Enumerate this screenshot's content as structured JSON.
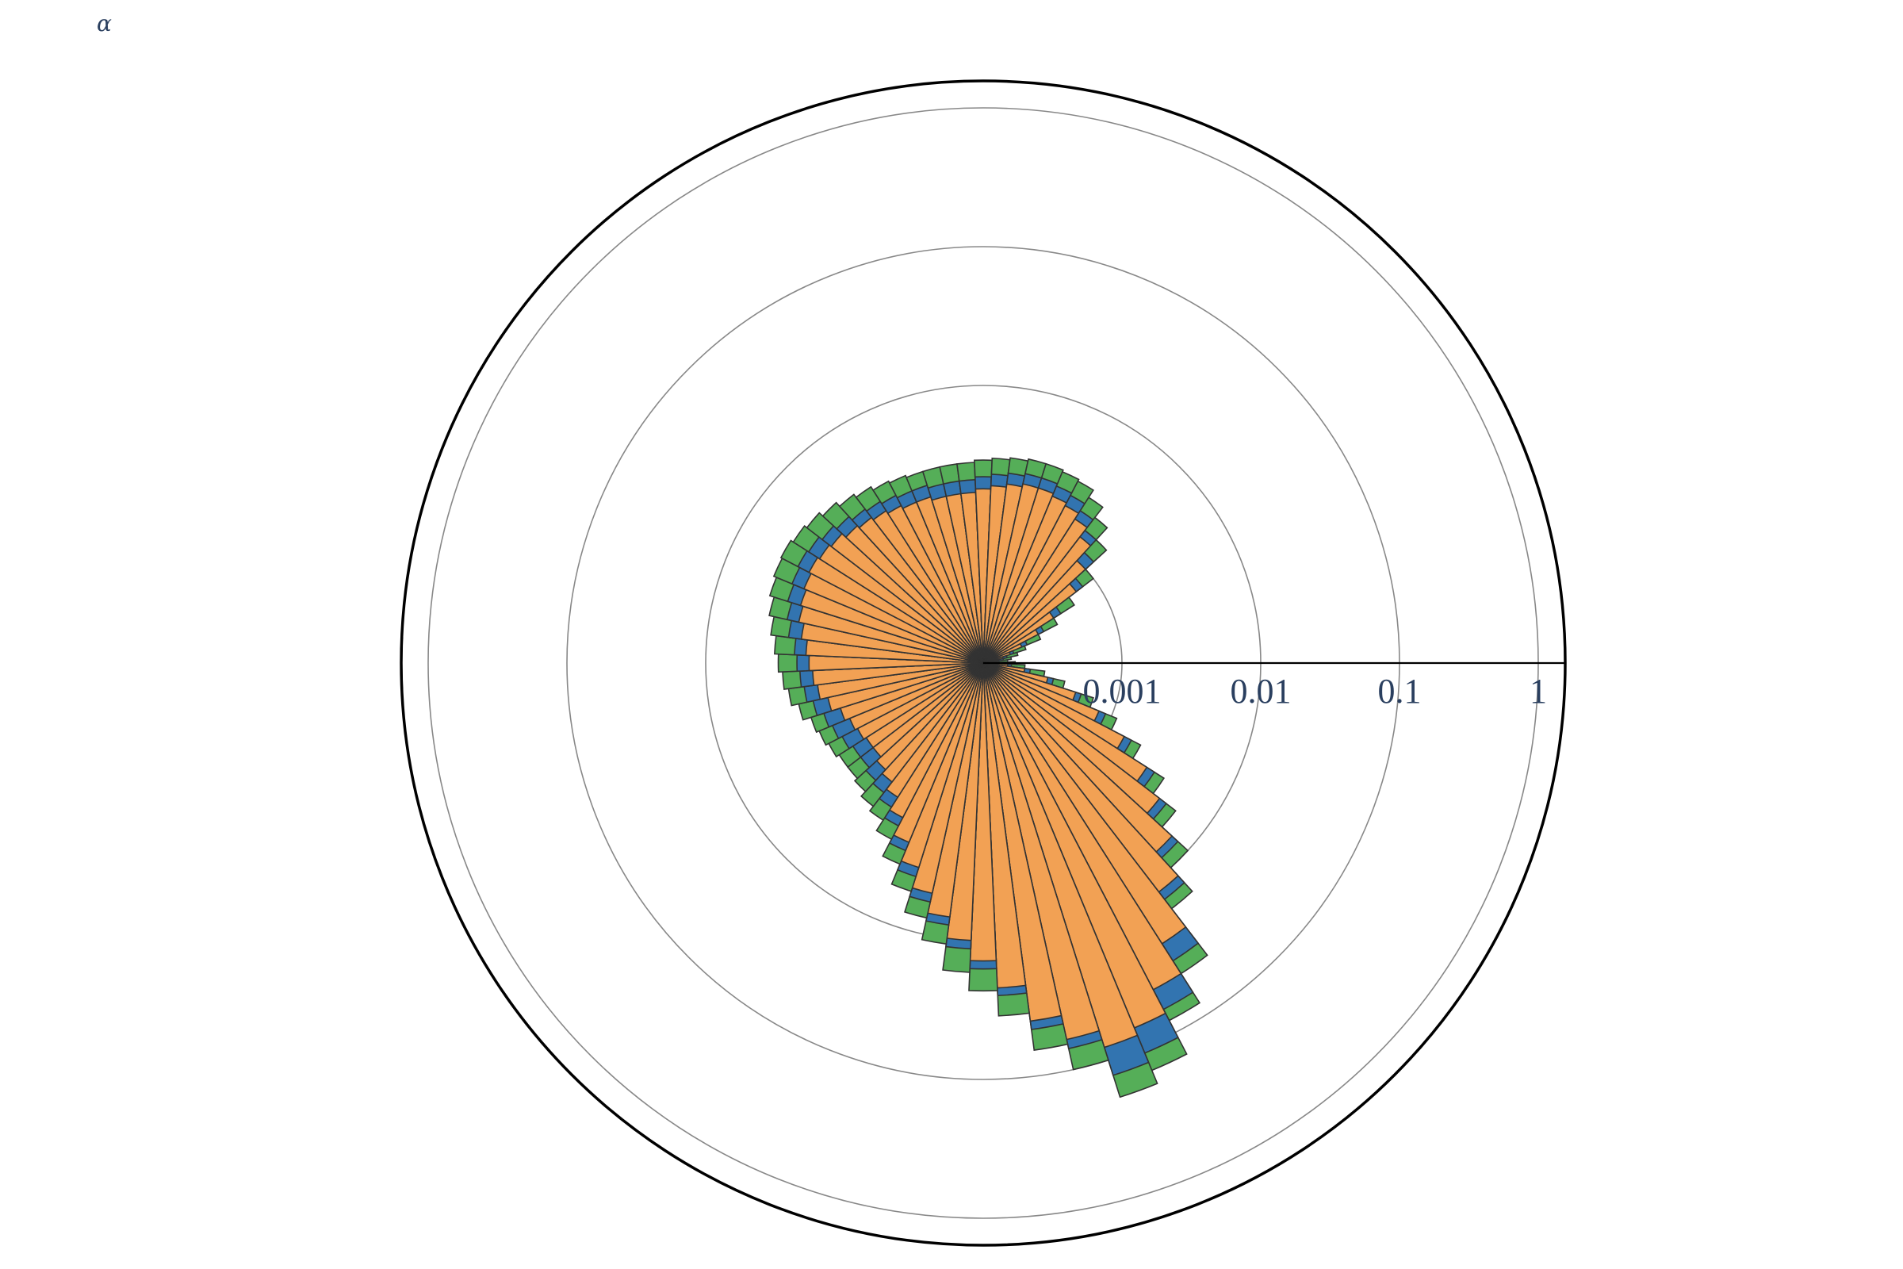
{
  "chart_data": {
    "type": "polar-bar",
    "title": "α",
    "radial_axis": {
      "type": "log",
      "tick_labels": [
        "0.001",
        "0.01",
        "0.1",
        "1"
      ],
      "tick_values": [
        0.001,
        0.01,
        0.1,
        1
      ],
      "range": [
        -4,
        0.16
      ]
    },
    "angular_axis": {
      "direction": "clockwise",
      "rotation_deg": 0,
      "bin_width_deg": 5,
      "grid": false
    },
    "barmode": "stack",
    "colors": {
      "orange": "#f2a154",
      "blue": "#3274b0",
      "green": "#55ae58",
      "outline": "#333333",
      "grid": "#888888",
      "text": "#2a3f5f"
    },
    "angles_deg": [
      0,
      5,
      10,
      15,
      20,
      25,
      30,
      35,
      40,
      45,
      50,
      55,
      60,
      65,
      70,
      75,
      80,
      85,
      90,
      95,
      100,
      105,
      110,
      115,
      120,
      125,
      130,
      135,
      140,
      145,
      150,
      155,
      160,
      165,
      170,
      175,
      180,
      185,
      190,
      195,
      200,
      205,
      210,
      215,
      220,
      225,
      230,
      235,
      240,
      245,
      250,
      255,
      260,
      265,
      270,
      275,
      280,
      285,
      290,
      295,
      300,
      305,
      310,
      315,
      320,
      325,
      330,
      335,
      340,
      345,
      350,
      355
    ],
    "series": [
      {
        "color": "orange",
        "cumulative_top": [
          0.00013,
          0.00015,
          0.0002,
          0.0003,
          0.0005,
          0.0008,
          0.0014,
          0.0025,
          0.004,
          0.007,
          0.012,
          0.025,
          0.045,
          0.07,
          0.08,
          0.06,
          0.04,
          0.022,
          0.014,
          0.01,
          0.007,
          0.005,
          0.0035,
          0.0025,
          0.0018,
          0.0014,
          0.0012,
          0.0011,
          0.001,
          0.001,
          0.00105,
          0.0011,
          0.0012,
          0.0014,
          0.0016,
          0.0017,
          0.0018,
          0.0019,
          0.0021,
          0.0023,
          0.0024,
          0.0025,
          0.0026,
          0.0025,
          0.0024,
          0.0022,
          0.0021,
          0.002,
          0.0019,
          0.0018,
          0.0018,
          0.0017,
          0.0017,
          0.0017,
          0.0018,
          0.0019,
          0.002,
          0.0021,
          0.0021,
          0.002,
          0.0019,
          0.0017,
          0.0014,
          0.001,
          0.0007,
          0.0004,
          0.00028,
          0.0002,
          0.00016,
          0.00014,
          0.00013,
          0.00012
        ]
      },
      {
        "color": "blue",
        "cumulative_top": [
          0.00014,
          0.00016,
          0.00022,
          0.00033,
          0.00055,
          0.0009,
          0.0016,
          0.0029,
          0.0046,
          0.008,
          0.014,
          0.035,
          0.065,
          0.11,
          0.13,
          0.07,
          0.046,
          0.025,
          0.016,
          0.0115,
          0.008,
          0.0058,
          0.0041,
          0.0029,
          0.0021,
          0.0017,
          0.0015,
          0.0014,
          0.0013,
          0.0013,
          0.0014,
          0.0015,
          0.0016,
          0.0018,
          0.002,
          0.0021,
          0.0022,
          0.0023,
          0.0026,
          0.0028,
          0.003,
          0.0031,
          0.0032,
          0.0031,
          0.0029,
          0.0027,
          0.0025,
          0.0024,
          0.0023,
          0.0022,
          0.0022,
          0.0021,
          0.0021,
          0.0021,
          0.0022,
          0.0023,
          0.0024,
          0.0025,
          0.0025,
          0.0024,
          0.0023,
          0.002,
          0.0016,
          0.0012,
          0.0008,
          0.00046,
          0.00031,
          0.00022,
          0.00017,
          0.00015,
          0.00014,
          0.00013
        ]
      },
      {
        "color": "green",
        "cumulative_top": [
          0.00017,
          0.0002,
          0.00028,
          0.0004,
          0.00068,
          0.0011,
          0.0019,
          0.0035,
          0.0056,
          0.01,
          0.017,
          0.045,
          0.08,
          0.15,
          0.19,
          0.1,
          0.065,
          0.035,
          0.023,
          0.017,
          0.011,
          0.0076,
          0.0053,
          0.0037,
          0.0027,
          0.0022,
          0.002,
          0.0018,
          0.0017,
          0.0017,
          0.0018,
          0.0019,
          0.002,
          0.0023,
          0.0026,
          0.0028,
          0.003,
          0.0032,
          0.0035,
          0.0038,
          0.0041,
          0.0043,
          0.0044,
          0.0042,
          0.004,
          0.0037,
          0.0034,
          0.0032,
          0.003,
          0.0029,
          0.0028,
          0.0028,
          0.0028,
          0.0028,
          0.0029,
          0.003,
          0.0031,
          0.0032,
          0.0032,
          0.0031,
          0.003,
          0.0026,
          0.0021,
          0.0016,
          0.001,
          0.0006,
          0.0004,
          0.00028,
          0.00021,
          0.00018,
          0.00016,
          0.00015
        ]
      }
    ]
  }
}
